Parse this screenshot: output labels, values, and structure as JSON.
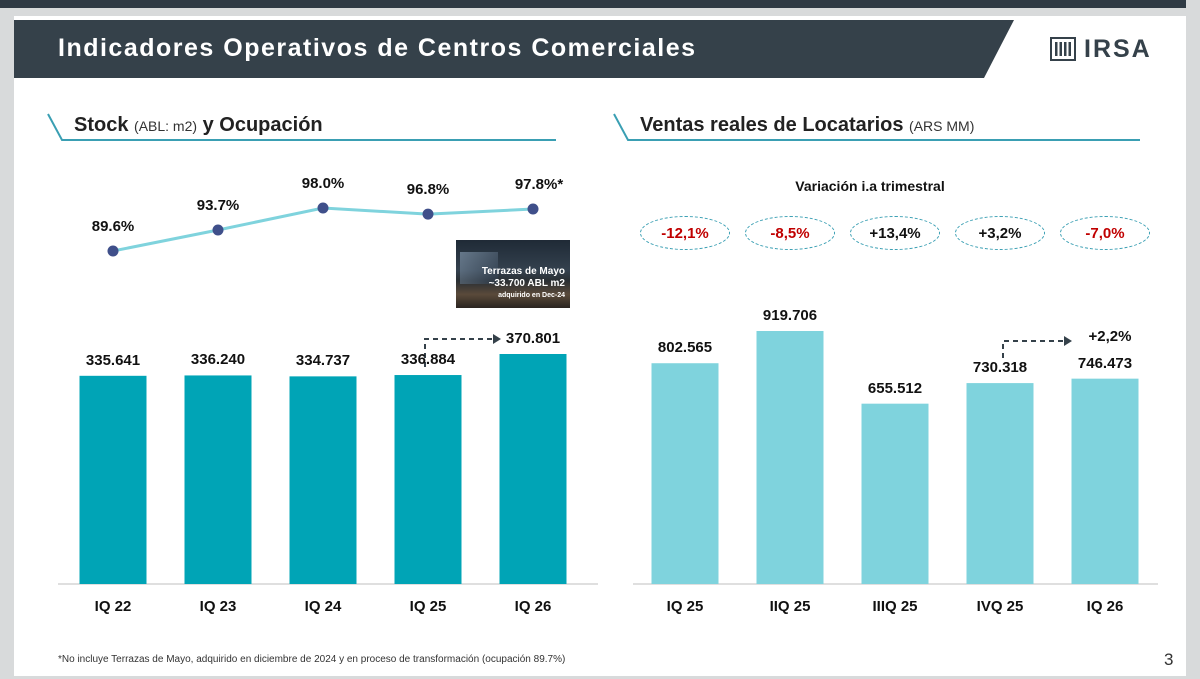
{
  "header": {
    "title": "Indicadores Operativos de Centros Comerciales",
    "logo_text": "IRSA"
  },
  "left": {
    "title_main": "Stock",
    "title_unit": "(ABL: m2)",
    "title_rest": "y Ocupación",
    "photo": {
      "line1": "Terrazas de Mayo",
      "line2": "~33.700 ABL m2",
      "line3": "adquirido en Dec-24"
    }
  },
  "right": {
    "title_main": "Ventas reales de Locatarios",
    "title_unit": "(ARS MM)",
    "subtitle": "Variación i.a trimestral"
  },
  "footnote": "*No incluye Terrazas de Mayo, adquirido en diciembre de 2024 y en proceso de transformación (ocupación 89.7%)",
  "page_number": "3",
  "colors": {
    "header_bg": "#35414a",
    "stock_bar": "#00a4b6",
    "sales_bar": "#7fd3dd",
    "occupancy_line": "#7fd3dd",
    "occupancy_dot": "#3f4f8a",
    "negative": "#c00000",
    "positive": "#111111",
    "accent_line": "#3a9fb3"
  },
  "chart_data": [
    {
      "type": "bar",
      "categories": [
        "IQ 22",
        "IQ 23",
        "IQ 24",
        "IQ 25",
        "IQ 26"
      ],
      "values": [
        335641,
        336240,
        334737,
        336884,
        370801
      ],
      "value_labels": [
        "335.641",
        "336.240",
        "334.737",
        "336.884",
        "370.801"
      ],
      "overlay_line": {
        "values": [
          89.6,
          93.7,
          98.0,
          96.8,
          97.8
        ],
        "labels": [
          "89.6%",
          "93.7%",
          "98.0%",
          "96.8%",
          "97.8%*"
        ]
      },
      "title": "Stock (ABL: m2) y Ocupación"
    },
    {
      "type": "bar",
      "categories": [
        "IQ 25",
        "IIQ 25",
        "IIIQ 25",
        "IVQ 25",
        "IQ 26"
      ],
      "values": [
        802565,
        919706,
        655512,
        730318,
        746473
      ],
      "value_labels": [
        "802.565",
        "919.706",
        "655.512",
        "730.318",
        "746.473"
      ],
      "yoy_variation": [
        "-12,1%",
        "-8,5%",
        "+13,4%",
        "+3,2%",
        "-7,0%"
      ],
      "annotation": "+2,2%",
      "title": "Ventas reales de Locatarios (ARS MM)"
    }
  ]
}
